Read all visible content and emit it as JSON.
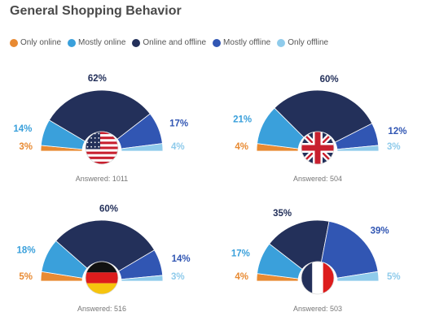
{
  "title": "General Shopping Behavior",
  "legend": [
    {
      "label": "Only online",
      "color": "#e88a32"
    },
    {
      "label": "Mostly online",
      "color": "#3aa0db"
    },
    {
      "label": "Online and offline",
      "color": "#23305a"
    },
    {
      "label": "Mostly offline",
      "color": "#3156b3"
    },
    {
      "label": "Only offline",
      "color": "#8fcbeb"
    }
  ],
  "chart_data": [
    {
      "type": "pie",
      "subtype": "semicircle",
      "country_flag": "usa-flag-icon",
      "categories": [
        "Only online",
        "Mostly online",
        "Online and offline",
        "Mostly offline",
        "Only offline"
      ],
      "values": [
        3,
        14,
        62,
        17,
        4
      ],
      "labels": [
        "3%",
        "14%",
        "62%",
        "17%",
        "4%"
      ],
      "answered": "Answered: 1011"
    },
    {
      "type": "pie",
      "subtype": "semicircle",
      "country_flag": "uk-flag-icon",
      "categories": [
        "Only online",
        "Mostly online",
        "Online and offline",
        "Mostly offline",
        "Only offline"
      ],
      "values": [
        4,
        21,
        60,
        12,
        3
      ],
      "labels": [
        "4%",
        "21%",
        "60%",
        "12%",
        "3%"
      ],
      "answered": "Answered: 504"
    },
    {
      "type": "pie",
      "subtype": "semicircle",
      "country_flag": "germany-flag-icon",
      "categories": [
        "Only online",
        "Mostly online",
        "Online and offline",
        "Mostly offline",
        "Only offline"
      ],
      "values": [
        5,
        18,
        60,
        14,
        3
      ],
      "labels": [
        "5%",
        "18%",
        "60%",
        "14%",
        "3%"
      ],
      "answered": "Answered: 516"
    },
    {
      "type": "pie",
      "subtype": "semicircle",
      "country_flag": "france-flag-icon",
      "categories": [
        "Only online",
        "Mostly online",
        "Online and offline",
        "Mostly offline",
        "Only offline"
      ],
      "values": [
        4,
        17,
        35,
        39,
        5
      ],
      "labels": [
        "4%",
        "17%",
        "35%",
        "39%",
        "5%"
      ],
      "answered": "Answered: 503"
    }
  ]
}
